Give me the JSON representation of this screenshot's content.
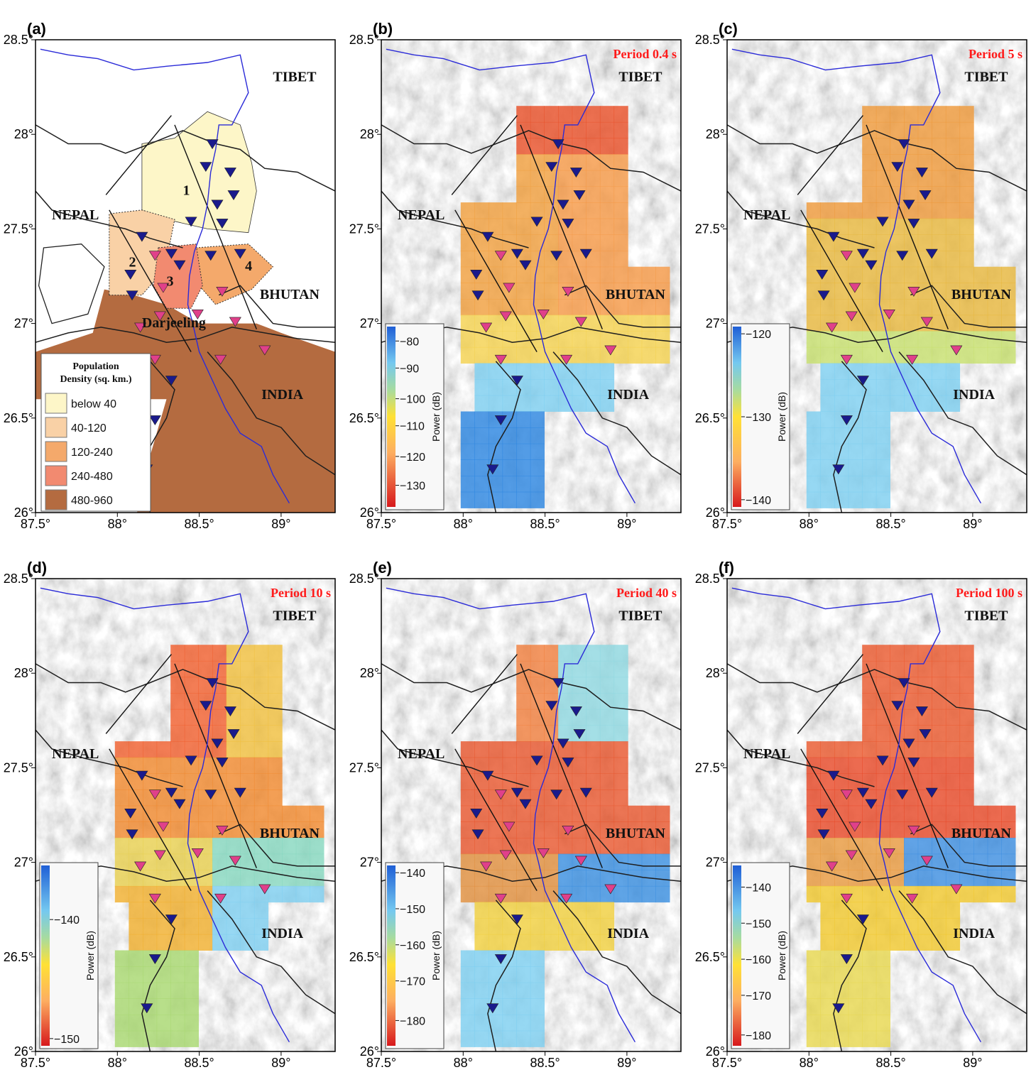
{
  "figure": {
    "x_ticks": [
      "87.5°",
      "88°",
      "88.5°",
      "89°"
    ],
    "y_ticks": [
      "26°",
      "26.5°",
      "27°",
      "27.5°",
      "28°",
      "28.5°"
    ],
    "countries": {
      "tibet": "TIBET",
      "nepal": "NEPAL",
      "bhutan": "BHUTAN",
      "india": "INDIA",
      "darjeeling": "Darjeeling"
    },
    "colors": {
      "station_blue": "#1a1a8c",
      "station_pink": "#e0408a",
      "river": "#2b2bd8",
      "period_text": "#ff1a1a"
    }
  },
  "panels": [
    {
      "label": "(a)",
      "legend": {
        "title_line1": "Population",
        "title_line2": "Density (sq. km.)",
        "items": [
          {
            "label": "below 40",
            "color": "#fdf6c8"
          },
          {
            "label": "40-120",
            "color": "#f9d1a6"
          },
          {
            "label": "120-240",
            "color": "#f4a96b"
          },
          {
            "label": "240-480",
            "color": "#f28a70"
          },
          {
            "label": "480-960",
            "color": "#b46b40"
          }
        ]
      },
      "zones": [
        "1",
        "2",
        "3",
        "4"
      ]
    },
    {
      "label": "(b)",
      "period": "Period 0.4 s",
      "colorbar": {
        "title": "Power (dB)",
        "ticks": [
          "-80",
          "-90",
          "-100",
          "-110",
          "-120",
          "-130"
        ]
      }
    },
    {
      "label": "(c)",
      "period": "Period 5 s",
      "colorbar": {
        "title": "Power (dB)",
        "ticks": [
          "-120",
          "-130",
          "-140"
        ]
      }
    },
    {
      "label": "(d)",
      "period": "Period 10 s",
      "colorbar": {
        "title": "Power (dB)",
        "ticks": [
          "-140",
          "-150"
        ]
      }
    },
    {
      "label": "(e)",
      "period": "Period 40 s",
      "colorbar": {
        "title": "Power (dB)",
        "ticks": [
          "-140",
          "-150",
          "-160",
          "-170",
          "-180"
        ]
      }
    },
    {
      "label": "(f)",
      "period": "Period 100 s",
      "colorbar": {
        "title": "Power (dB)",
        "ticks": [
          "-140",
          "-150",
          "-160",
          "-170",
          "-180"
        ]
      }
    }
  ],
  "stations": {
    "blue": [
      [
        88.58,
        27.95
      ],
      [
        88.54,
        27.83
      ],
      [
        88.69,
        27.8
      ],
      [
        88.71,
        27.68
      ],
      [
        88.61,
        27.63
      ],
      [
        88.64,
        27.53
      ],
      [
        88.45,
        27.54
      ],
      [
        88.15,
        27.46
      ],
      [
        88.33,
        27.37
      ],
      [
        88.57,
        27.36
      ],
      [
        88.75,
        27.37
      ],
      [
        88.38,
        27.31
      ],
      [
        88.08,
        27.26
      ],
      [
        88.09,
        27.15
      ],
      [
        88.33,
        26.7
      ],
      [
        88.23,
        26.49
      ],
      [
        88.18,
        26.23
      ]
    ],
    "pink": [
      [
        88.23,
        27.36
      ],
      [
        88.28,
        27.19
      ],
      [
        88.64,
        27.17
      ],
      [
        88.26,
        27.04
      ],
      [
        88.49,
        27.05
      ],
      [
        88.72,
        27.01
      ],
      [
        88.14,
        26.98
      ],
      [
        88.23,
        26.81
      ],
      [
        88.63,
        26.81
      ],
      [
        88.9,
        26.86
      ]
    ]
  }
}
